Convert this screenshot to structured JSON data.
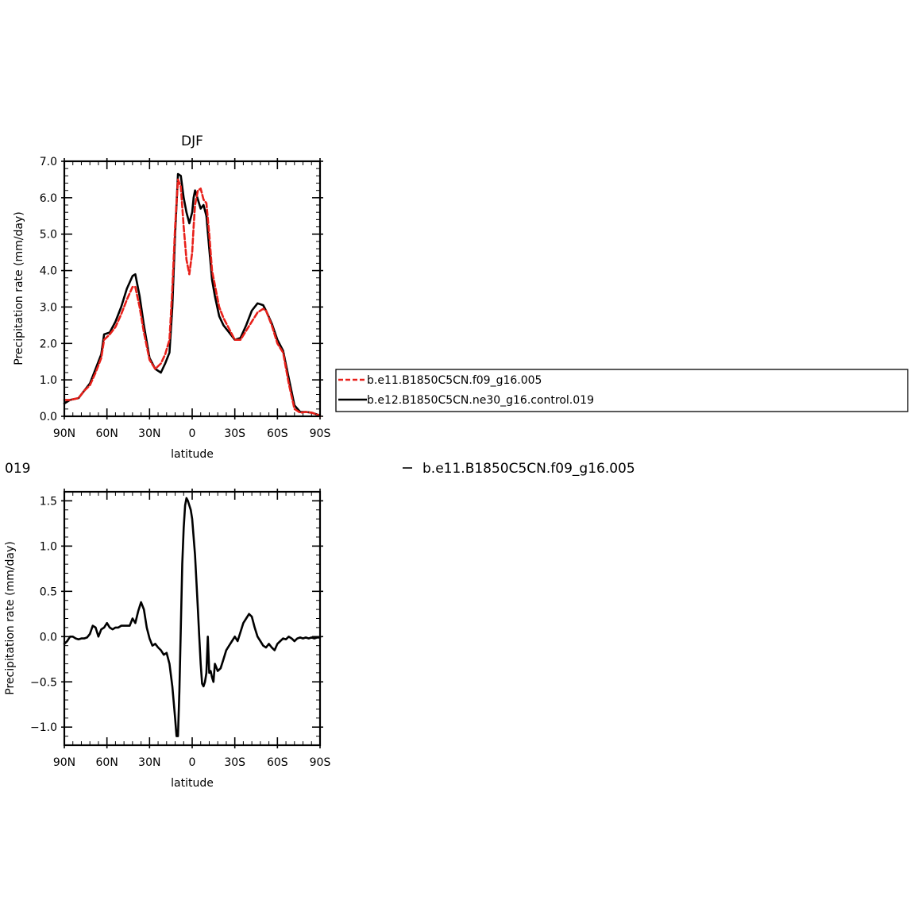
{
  "chart_data": [
    {
      "type": "line",
      "title": "DJF",
      "xlabel": "latitude",
      "ylabel": "Precipitation rate (mm/day)",
      "xlim": [
        90,
        -90
      ],
      "ylim": [
        0,
        7
      ],
      "xticks": [
        90,
        60,
        30,
        0,
        -30,
        -60,
        -90
      ],
      "xtick_labels": [
        "90N",
        "60N",
        "30N",
        "0",
        "30S",
        "60S",
        "90S"
      ],
      "yticks": [
        0,
        1,
        2,
        3,
        4,
        5,
        6,
        7
      ],
      "ytick_labels": [
        "0.0",
        "1.0",
        "2.0",
        "3.0",
        "4.0",
        "5.0",
        "6.0",
        "7.0"
      ],
      "grid": false,
      "legend": "right",
      "series": [
        {
          "name": "b.e11.B1850C5CN.f09_g16.005",
          "color": "#e8201a",
          "dash": "dashed",
          "x": [
            90,
            86,
            80,
            76,
            72,
            68,
            64,
            62,
            58,
            54,
            50,
            46,
            42,
            40,
            37,
            34,
            30,
            26,
            22,
            19,
            16,
            14,
            12,
            10,
            8,
            6,
            4,
            2,
            0,
            -1,
            -2,
            -4,
            -6,
            -8,
            -10,
            -12,
            -14,
            -16,
            -19,
            -22,
            -26,
            -30,
            -34,
            -38,
            -42,
            -46,
            -50,
            -52,
            -56,
            -60,
            -64,
            -68,
            -72,
            -76,
            -80,
            -84,
            -88,
            -90
          ],
          "y": [
            0.45,
            0.45,
            0.5,
            0.7,
            0.85,
            1.2,
            1.6,
            2.1,
            2.25,
            2.45,
            2.8,
            3.2,
            3.55,
            3.55,
            3.0,
            2.3,
            1.55,
            1.3,
            1.45,
            1.7,
            2.1,
            3.5,
            5.2,
            6.5,
            6.3,
            5.2,
            4.3,
            3.9,
            4.5,
            5.2,
            5.8,
            6.2,
            6.25,
            5.95,
            5.85,
            5.0,
            4.0,
            3.6,
            3.0,
            2.7,
            2.4,
            2.1,
            2.1,
            2.35,
            2.6,
            2.85,
            2.95,
            2.9,
            2.5,
            2.0,
            1.75,
            0.9,
            0.2,
            0.1,
            0.12,
            0.1,
            0.05,
            0.0
          ]
        },
        {
          "name": "b.e12.B1850C5CN.ne30_g16.control.019",
          "color": "#000000",
          "dash": "solid",
          "x": [
            90,
            86,
            80,
            76,
            72,
            68,
            64,
            62,
            58,
            54,
            50,
            46,
            42,
            40,
            37,
            34,
            30,
            26,
            22,
            19,
            16,
            14,
            12,
            10,
            8,
            6,
            4,
            2,
            0,
            -1,
            -2,
            -4,
            -6,
            -8,
            -10,
            -12,
            -14,
            -16,
            -19,
            -22,
            -26,
            -30,
            -34,
            -38,
            -42,
            -46,
            -50,
            -52,
            -56,
            -60,
            -64,
            -68,
            -72,
            -76,
            -80,
            -84,
            -88,
            -90
          ],
          "y": [
            0.35,
            0.45,
            0.5,
            0.7,
            0.9,
            1.3,
            1.7,
            2.25,
            2.3,
            2.6,
            3.0,
            3.5,
            3.85,
            3.9,
            3.3,
            2.5,
            1.6,
            1.3,
            1.2,
            1.45,
            1.75,
            3.0,
            5.0,
            6.65,
            6.6,
            6.0,
            5.6,
            5.3,
            5.6,
            6.0,
            6.2,
            5.95,
            5.7,
            5.8,
            5.5,
            4.6,
            3.75,
            3.3,
            2.75,
            2.5,
            2.3,
            2.1,
            2.15,
            2.5,
            2.9,
            3.1,
            3.05,
            2.9,
            2.55,
            2.1,
            1.8,
            1.05,
            0.3,
            0.12,
            0.12,
            0.1,
            0.05,
            0.02
          ]
        }
      ]
    },
    {
      "type": "line",
      "title": "019",
      "xlabel": "latitude",
      "ylabel": "Precipitation rate (mm/day)",
      "xlim": [
        90,
        -90
      ],
      "ylim": [
        -1.2,
        1.6
      ],
      "xticks": [
        90,
        60,
        30,
        0,
        -30,
        -60,
        -90
      ],
      "xtick_labels": [
        "90N",
        "60N",
        "30N",
        "0",
        "30S",
        "60S",
        "90S"
      ],
      "yticks": [
        -1.0,
        -0.5,
        0.0,
        0.5,
        1.0,
        1.5
      ],
      "ytick_labels": [
        "−1.0",
        "−0.5",
        "0.0",
        "0.5",
        "1.0",
        "1.5"
      ],
      "grid": false,
      "legend": "top-right",
      "series": [
        {
          "name": "b.e11.B1850C5CN.f09_g16.005",
          "color": "#000000",
          "dash": "solid",
          "x": [
            90,
            88,
            86,
            84,
            82,
            80,
            78,
            76,
            74,
            72,
            70,
            68,
            66,
            64,
            62,
            60,
            58,
            56,
            54,
            52,
            50,
            48,
            46,
            44,
            42,
            40,
            38,
            36,
            34,
            32,
            30,
            28,
            26,
            24,
            22,
            20,
            18,
            16,
            14,
            12,
            11,
            10,
            9,
            8,
            7,
            6,
            5,
            4,
            3,
            2,
            1,
            0,
            -1,
            -2,
            -3,
            -4,
            -5,
            -6,
            -7,
            -8,
            -9,
            -10,
            -11,
            -12,
            -13,
            -14,
            -15,
            -16,
            -18,
            -20,
            -22,
            -24,
            -26,
            -28,
            -30,
            -32,
            -34,
            -36,
            -38,
            -40,
            -42,
            -44,
            -46,
            -48,
            -50,
            -52,
            -54,
            -56,
            -58,
            -60,
            -62,
            -64,
            -66,
            -68,
            -70,
            -72,
            -74,
            -76,
            -78,
            -80,
            -82,
            -84,
            -86,
            -88,
            -90
          ],
          "y": [
            -0.08,
            -0.05,
            0.0,
            0.0,
            -0.02,
            -0.03,
            -0.02,
            -0.02,
            -0.01,
            0.03,
            0.12,
            0.1,
            0.0,
            0.08,
            0.1,
            0.15,
            0.1,
            0.08,
            0.1,
            0.1,
            0.12,
            0.12,
            0.12,
            0.12,
            0.2,
            0.15,
            0.28,
            0.38,
            0.3,
            0.1,
            -0.02,
            -0.1,
            -0.08,
            -0.12,
            -0.15,
            -0.2,
            -0.18,
            -0.3,
            -0.55,
            -0.9,
            -1.1,
            -1.1,
            -0.6,
            0.1,
            0.8,
            1.2,
            1.45,
            1.53,
            1.5,
            1.45,
            1.4,
            1.3,
            1.1,
            0.9,
            0.6,
            0.3,
            0.0,
            -0.3,
            -0.52,
            -0.55,
            -0.5,
            -0.4,
            0.0,
            -0.4,
            -0.38,
            -0.45,
            -0.5,
            -0.3,
            -0.38,
            -0.35,
            -0.25,
            -0.15,
            -0.1,
            -0.05,
            0.0,
            -0.05,
            0.05,
            0.15,
            0.2,
            0.25,
            0.22,
            0.1,
            0.0,
            -0.05,
            -0.1,
            -0.12,
            -0.08,
            -0.12,
            -0.15,
            -0.08,
            -0.05,
            -0.02,
            -0.03,
            0.0,
            -0.02,
            -0.05,
            -0.02,
            -0.01,
            -0.02,
            -0.01,
            -0.02,
            -0.01,
            -0.02,
            -0.01,
            -0.01
          ]
        }
      ]
    }
  ]
}
